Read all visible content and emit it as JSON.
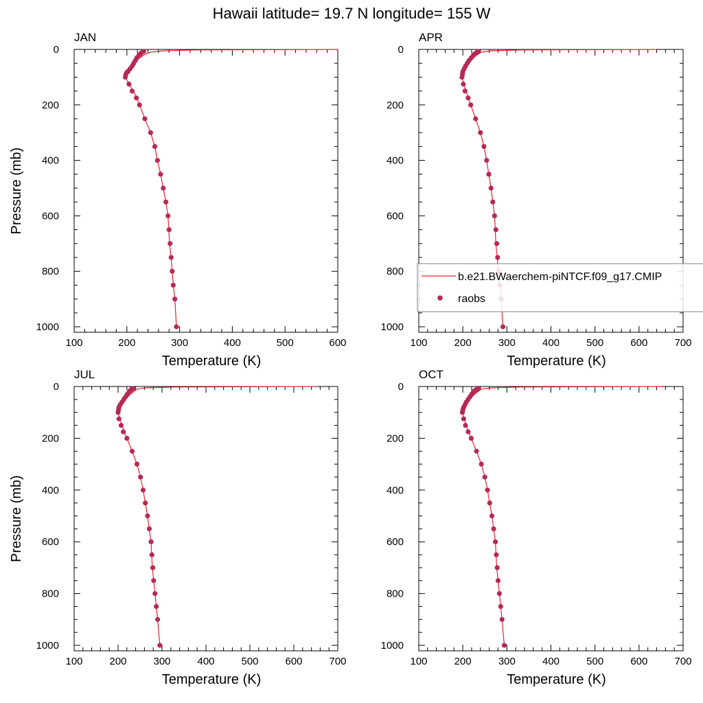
{
  "figure": {
    "title": "Hawaii  latitude= 19.7 N longitude= 155 W"
  },
  "colors": {
    "model_line": "#e8202a",
    "obs_marker": "#b52a55",
    "axis": "#000000",
    "legend_border": "#808080"
  },
  "legend": {
    "model_label": "b.e21.BWaerchem-piNTCF.f09_g17.CMIP",
    "obs_label": "raobs",
    "placement": "lower-right of APR panel"
  },
  "chart_data": [
    {
      "type": "line",
      "panel": "JAN",
      "title": "JAN",
      "xlabel": "Temperature (K)",
      "ylabel": "Pressure (mb)",
      "xlim": [
        100,
        600
      ],
      "ylim": [
        1000,
        0
      ],
      "y_inverted": true,
      "xticks": [
        100,
        200,
        300,
        400,
        500,
        600
      ],
      "yticks": [
        0,
        200,
        400,
        600,
        800,
        1000
      ],
      "grid": false,
      "series": [
        {
          "name": "b.e21.BWaerchem-piNTCF.f09_g17.CMIP",
          "kind": "line",
          "x": [
            600,
            450,
            330,
            270,
            245,
            232,
            225,
            219,
            214,
            208,
            202,
            196,
            197,
            204,
            212,
            219,
            224,
            234,
            245,
            253,
            258,
            264,
            269,
            274,
            278,
            281,
            284,
            286,
            288,
            291,
            294
          ],
          "y": [
            0,
            1,
            2,
            5,
            10,
            20,
            30,
            40,
            50,
            60,
            70,
            80,
            100,
            125,
            150,
            175,
            200,
            250,
            300,
            350,
            400,
            450,
            500,
            550,
            600,
            700,
            750,
            800,
            850,
            900,
            1000
          ]
        },
        {
          "name": "raobs",
          "kind": "scatter",
          "x": [
            232,
            229,
            226,
            223,
            219,
            216,
            213,
            210,
            206,
            202,
            198,
            197,
            204,
            210,
            218,
            224,
            234,
            245,
            253,
            258,
            264,
            269,
            274,
            278,
            280,
            282,
            284,
            286,
            288,
            291,
            294
          ],
          "y": [
            7,
            10,
            15,
            20,
            30,
            40,
            50,
            60,
            70,
            80,
            90,
            100,
            125,
            150,
            175,
            200,
            250,
            300,
            350,
            400,
            450,
            500,
            550,
            600,
            650,
            700,
            750,
            800,
            850,
            900,
            1000
          ]
        }
      ]
    },
    {
      "type": "line",
      "panel": "APR",
      "title": "APR",
      "xlabel": "Temperature (K)",
      "ylabel": "",
      "xlim": [
        100,
        700
      ],
      "ylim": [
        1000,
        0
      ],
      "y_inverted": true,
      "xticks": [
        100,
        200,
        300,
        400,
        500,
        600,
        700
      ],
      "yticks": [
        0,
        200,
        400,
        600,
        800,
        1000
      ],
      "grid": false,
      "series": [
        {
          "name": "b.e21.BWaerchem-piNTCF.f09_g17.CMIP",
          "kind": "line",
          "x": [
            640,
            460,
            330,
            265,
            242,
            232,
            225,
            219,
            213,
            208,
            203,
            199,
            198,
            202,
            207,
            213,
            218,
            229,
            240,
            248,
            254,
            259,
            264,
            268,
            272,
            275,
            278,
            281,
            284,
            287,
            291
          ],
          "y": [
            0,
            1,
            2,
            5,
            10,
            20,
            30,
            40,
            50,
            60,
            70,
            80,
            100,
            125,
            150,
            175,
            200,
            250,
            300,
            350,
            400,
            450,
            500,
            550,
            600,
            700,
            750,
            800,
            850,
            900,
            1000
          ]
        },
        {
          "name": "raobs",
          "kind": "scatter",
          "x": [
            235,
            232,
            228,
            224,
            219,
            214,
            210,
            206,
            203,
            200,
            199,
            198,
            201,
            205,
            212,
            218,
            229,
            240,
            248,
            254,
            259,
            264,
            268,
            272,
            275,
            277,
            279,
            281,
            284,
            287,
            291
          ],
          "y": [
            7,
            10,
            15,
            20,
            30,
            40,
            50,
            60,
            70,
            80,
            90,
            100,
            125,
            150,
            175,
            200,
            250,
            300,
            350,
            400,
            450,
            500,
            550,
            600,
            650,
            700,
            750,
            800,
            850,
            900,
            1000
          ]
        }
      ]
    },
    {
      "type": "line",
      "panel": "JUL",
      "title": "JUL",
      "xlabel": "Temperature (K)",
      "ylabel": "Pressure (mb)",
      "xlim": [
        100,
        700
      ],
      "ylim": [
        1000,
        0
      ],
      "y_inverted": true,
      "xticks": [
        100,
        200,
        300,
        400,
        500,
        600,
        700
      ],
      "yticks": [
        0,
        200,
        400,
        600,
        800,
        1000
      ],
      "grid": false,
      "series": [
        {
          "name": "b.e21.BWaerchem-piNTCF.f09_g17.CMIP",
          "kind": "line",
          "x": [
            650,
            470,
            330,
            265,
            243,
            235,
            228,
            222,
            216,
            210,
            205,
            201,
            200,
            204,
            209,
            214,
            220,
            232,
            243,
            251,
            257,
            262,
            267,
            271,
            275,
            278,
            281,
            284,
            287,
            290,
            295
          ],
          "y": [
            0,
            1,
            2,
            5,
            10,
            20,
            30,
            40,
            50,
            60,
            70,
            80,
            100,
            125,
            150,
            175,
            200,
            250,
            300,
            350,
            400,
            450,
            500,
            550,
            600,
            700,
            750,
            800,
            850,
            900,
            1000
          ]
        },
        {
          "name": "raobs",
          "kind": "scatter",
          "x": [
            235,
            231,
            228,
            225,
            221,
            217,
            213,
            209,
            205,
            202,
            201,
            200,
            202,
            207,
            212,
            220,
            232,
            243,
            251,
            257,
            262,
            267,
            271,
            275,
            277,
            279,
            281,
            284,
            287,
            290,
            295
          ],
          "y": [
            7,
            10,
            15,
            20,
            30,
            40,
            50,
            60,
            70,
            80,
            90,
            100,
            125,
            150,
            175,
            200,
            250,
            300,
            350,
            400,
            450,
            500,
            550,
            600,
            650,
            700,
            750,
            800,
            850,
            900,
            1000
          ]
        }
      ]
    },
    {
      "type": "line",
      "panel": "OCT",
      "title": "OCT",
      "xlabel": "Temperature (K)",
      "ylabel": "",
      "xlim": [
        100,
        700
      ],
      "ylim": [
        1000,
        0
      ],
      "y_inverted": true,
      "xticks": [
        100,
        200,
        300,
        400,
        500,
        600,
        700
      ],
      "yticks": [
        0,
        200,
        400,
        600,
        800,
        1000
      ],
      "grid": false,
      "series": [
        {
          "name": "b.e21.BWaerchem-piNTCF.f09_g17.CMIP",
          "kind": "line",
          "x": [
            650,
            470,
            330,
            265,
            242,
            234,
            227,
            221,
            215,
            209,
            204,
            200,
            199,
            203,
            208,
            213,
            219,
            231,
            242,
            250,
            256,
            261,
            266,
            270,
            274,
            277,
            280,
            283,
            286,
            289,
            294
          ],
          "y": [
            0,
            1,
            2,
            5,
            10,
            20,
            30,
            40,
            50,
            60,
            70,
            80,
            100,
            125,
            150,
            175,
            200,
            250,
            300,
            350,
            400,
            450,
            500,
            550,
            600,
            700,
            750,
            800,
            850,
            900,
            1000
          ]
        },
        {
          "name": "raobs",
          "kind": "scatter",
          "x": [
            235,
            232,
            228,
            224,
            220,
            216,
            212,
            208,
            205,
            202,
            200,
            199,
            202,
            206,
            212,
            219,
            231,
            242,
            250,
            256,
            261,
            266,
            270,
            274,
            276,
            278,
            280,
            283,
            286,
            289,
            294
          ],
          "y": [
            7,
            10,
            15,
            20,
            30,
            40,
            50,
            60,
            70,
            80,
            90,
            100,
            125,
            150,
            175,
            200,
            250,
            300,
            350,
            400,
            450,
            500,
            550,
            600,
            650,
            700,
            750,
            800,
            850,
            900,
            1000
          ]
        }
      ]
    }
  ]
}
